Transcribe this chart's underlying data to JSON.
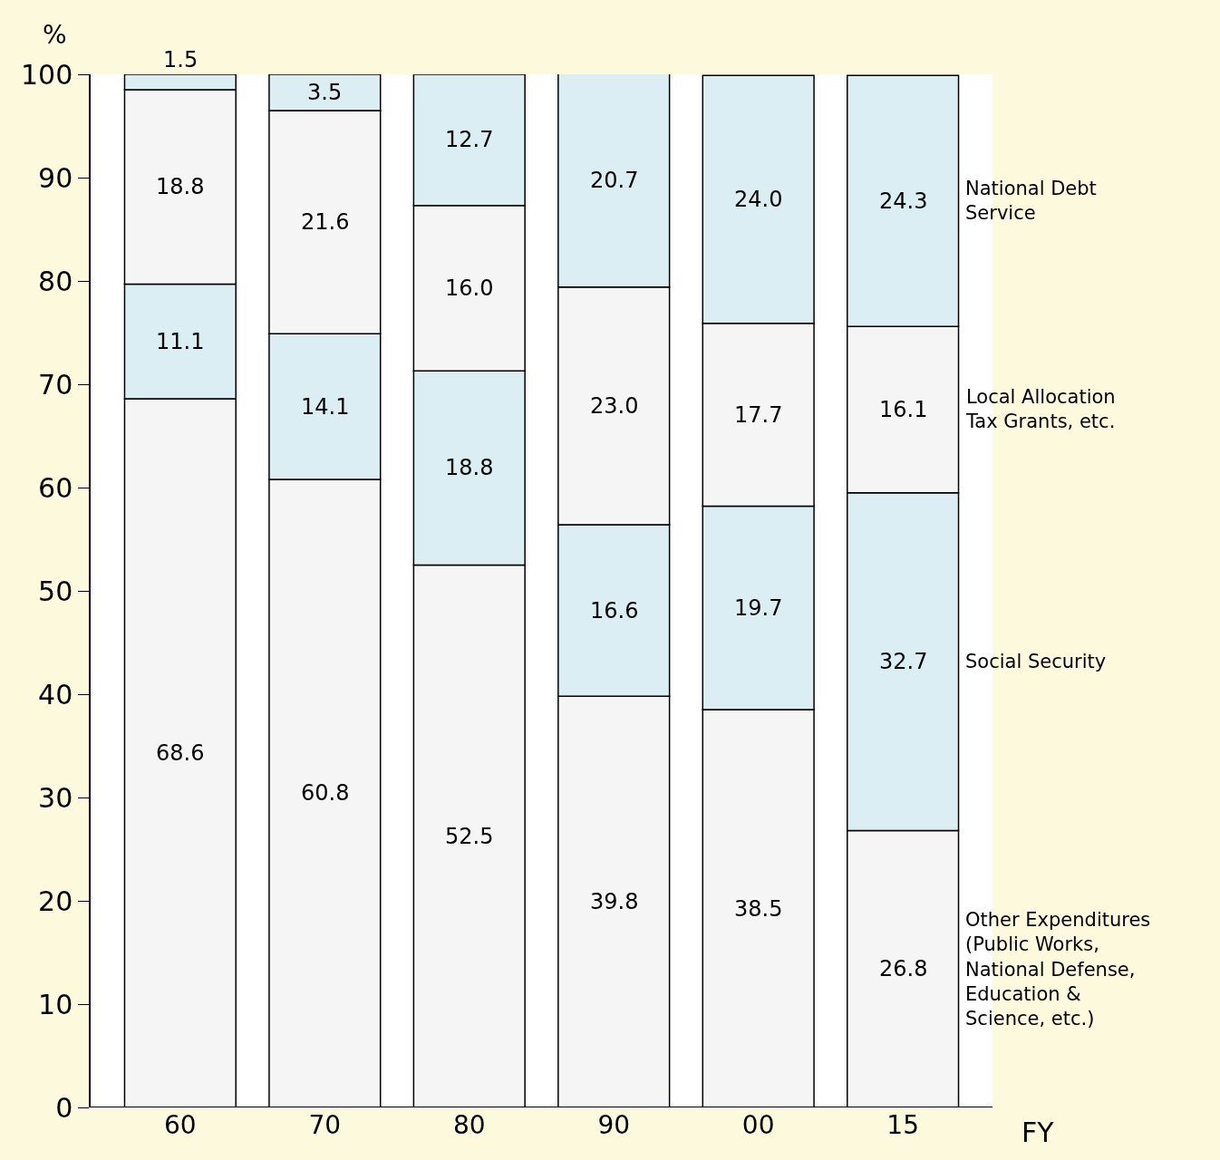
{
  "chart_data": {
    "type": "bar",
    "stacked": true,
    "xlabel": "FY",
    "ylabel": "%",
    "categories": [
      "60",
      "70",
      "80",
      "90",
      "00",
      "15"
    ],
    "series": [
      {
        "name": "Other Expenditures (Public Works, National Defense, Education & Science, etc.)",
        "color": "#f5f5f5",
        "values": [
          68.6,
          60.8,
          52.5,
          39.8,
          38.5,
          26.8
        ],
        "value_labels": [
          "68.6",
          "60.8",
          "52.5",
          "39.8",
          "38.5",
          "26.8"
        ]
      },
      {
        "name": "Social Security",
        "color": "#daeef3",
        "values": [
          11.1,
          14.1,
          18.8,
          16.6,
          19.7,
          32.7
        ],
        "value_labels": [
          "11.1",
          "14.1",
          "18.8",
          "16.6",
          "19.7",
          "32.7"
        ]
      },
      {
        "name": "Local Allocation Tax Grants, etc.",
        "color": "#f5f5f5",
        "values": [
          18.8,
          21.6,
          16.0,
          23.0,
          17.7,
          16.1
        ],
        "value_labels": [
          "18.8",
          "21.6",
          "16.0",
          "23.0",
          "17.7",
          "16.1"
        ]
      },
      {
        "name": "National Debt Service",
        "color": "#daeef3",
        "values": [
          1.5,
          3.5,
          12.7,
          20.7,
          24.0,
          24.3
        ],
        "value_labels": [
          "1.5",
          "3.5",
          "12.7",
          "20.7",
          "24.0",
          "24.3"
        ]
      }
    ],
    "ylim": [
      0,
      100
    ],
    "yticks": [
      0,
      10,
      20,
      30,
      40,
      50,
      60,
      70,
      80,
      90,
      100
    ],
    "legend": false
  }
}
